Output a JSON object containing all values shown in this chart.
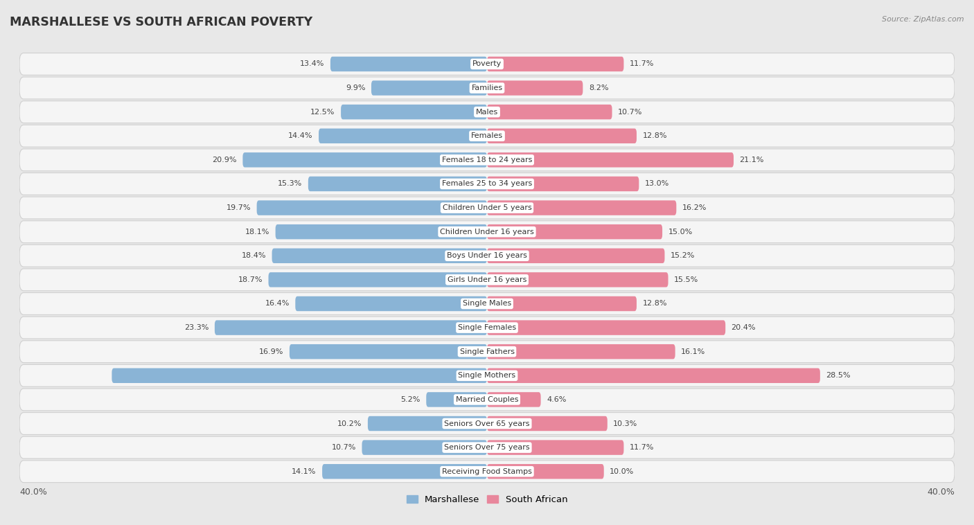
{
  "title": "MARSHALLESE VS SOUTH AFRICAN POVERTY",
  "source_text": "Source: ZipAtlas.com",
  "categories": [
    "Poverty",
    "Families",
    "Males",
    "Females",
    "Females 18 to 24 years",
    "Females 25 to 34 years",
    "Children Under 5 years",
    "Children Under 16 years",
    "Boys Under 16 years",
    "Girls Under 16 years",
    "Single Males",
    "Single Females",
    "Single Fathers",
    "Single Mothers",
    "Married Couples",
    "Seniors Over 65 years",
    "Seniors Over 75 years",
    "Receiving Food Stamps"
  ],
  "marshallese": [
    13.4,
    9.9,
    12.5,
    14.4,
    20.9,
    15.3,
    19.7,
    18.1,
    18.4,
    18.7,
    16.4,
    23.3,
    16.9,
    32.1,
    5.2,
    10.2,
    10.7,
    14.1
  ],
  "south_african": [
    11.7,
    8.2,
    10.7,
    12.8,
    21.1,
    13.0,
    16.2,
    15.0,
    15.2,
    15.5,
    12.8,
    20.4,
    16.1,
    28.5,
    4.6,
    10.3,
    11.7,
    10.0
  ],
  "marshallese_color": "#8ab4d6",
  "south_african_color": "#e8879c",
  "marshallese_label": "Marshallese",
  "south_african_label": "South African",
  "axis_limit": 40.0,
  "bar_height": 0.62,
  "page_bg": "#e8e8e8",
  "row_bg": "#f5f5f5",
  "row_border": "#d0d0d0",
  "value_fontsize": 8.0,
  "category_fontsize": 8.0,
  "title_fontsize": 12.5
}
